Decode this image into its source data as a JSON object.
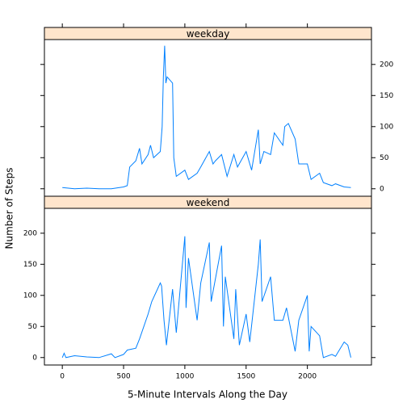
{
  "chart_data": {
    "type": "line",
    "xlabel": "5-Minute Intervals Along the Day",
    "ylabel": "Number of Steps",
    "xlim": [
      -146,
      2523
    ],
    "xticks": [
      0,
      500,
      1000,
      1500,
      2000
    ],
    "ylim": [
      -12,
      240
    ],
    "yticks": [
      0,
      50,
      100,
      150,
      200
    ],
    "color": "#0080ff",
    "strip_color": "#ffe5cc",
    "panels": [
      {
        "strip": "weekday",
        "x": [
          0,
          50,
          100,
          200,
          300,
          400,
          500,
          530,
          550,
          600,
          630,
          650,
          700,
          720,
          745,
          800,
          815,
          825,
          835,
          845,
          855,
          900,
          910,
          930,
          1000,
          1030,
          1100,
          1130,
          1200,
          1230,
          1250,
          1300,
          1345,
          1400,
          1430,
          1500,
          1545,
          1600,
          1615,
          1645,
          1700,
          1730,
          1800,
          1815,
          1845,
          1900,
          1930,
          2000,
          2030,
          2100,
          2130,
          2200,
          2230,
          2300,
          2355
        ],
        "values": [
          2,
          1,
          0,
          1,
          0,
          0,
          3,
          5,
          35,
          45,
          65,
          40,
          55,
          70,
          50,
          60,
          100,
          180,
          230,
          170,
          180,
          170,
          50,
          20,
          30,
          15,
          25,
          35,
          60,
          40,
          45,
          55,
          20,
          55,
          35,
          60,
          30,
          95,
          40,
          60,
          55,
          90,
          70,
          100,
          105,
          80,
          40,
          40,
          15,
          25,
          10,
          5,
          8,
          3,
          2
        ]
      },
      {
        "strip": "weekend",
        "x": [
          0,
          15,
          30,
          100,
          200,
          300,
          400,
          430,
          500,
          530,
          600,
          630,
          700,
          730,
          800,
          810,
          830,
          850,
          900,
          930,
          1000,
          1010,
          1030,
          1100,
          1130,
          1200,
          1215,
          1300,
          1315,
          1330,
          1400,
          1415,
          1445,
          1500,
          1530,
          1600,
          1615,
          1630,
          1700,
          1730,
          1800,
          1830,
          1900,
          1930,
          2000,
          2015,
          2030,
          2100,
          2130,
          2200,
          2230,
          2300,
          2330,
          2355
        ],
        "values": [
          0,
          7,
          0,
          3,
          1,
          0,
          6,
          0,
          5,
          12,
          15,
          30,
          70,
          90,
          120,
          115,
          60,
          20,
          110,
          40,
          195,
          80,
          160,
          60,
          120,
          185,
          90,
          180,
          50,
          130,
          30,
          110,
          20,
          70,
          25,
          150,
          190,
          90,
          130,
          60,
          60,
          80,
          10,
          60,
          100,
          10,
          50,
          35,
          0,
          5,
          2,
          25,
          20,
          0
        ]
      }
    ]
  }
}
